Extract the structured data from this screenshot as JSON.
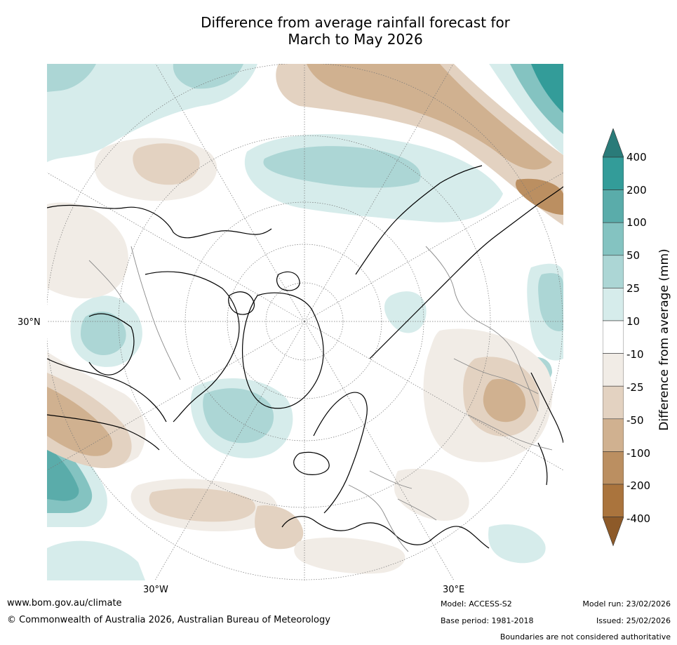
{
  "title": {
    "line1": "Difference from average rainfall forecast for",
    "line2": "March to May 2026"
  },
  "axis_labels": {
    "lat_30n": "30°N",
    "lon_30w": "30°W",
    "lon_30e": "30°E"
  },
  "colorbar": {
    "title": "Difference from average (mm)",
    "ticks": [
      "400",
      "200",
      "100",
      "50",
      "25",
      "10",
      "-10",
      "-25",
      "-50",
      "-100",
      "-200",
      "-400"
    ],
    "colors": [
      "#2a7b79",
      "#339c99",
      "#5aacaa",
      "#84c3c1",
      "#acd6d5",
      "#d6eceb",
      "#ffffff",
      "#f1ece6",
      "#e3d2c1",
      "#d0b190",
      "#bb8f61",
      "#aa743d",
      "#8d5a29"
    ]
  },
  "footer": {
    "website": "www.bom.gov.au/climate",
    "copyright": "© Commonwealth of Australia 2026, Australian Bureau of Meteorology",
    "model": "Model: ACCESS-S2",
    "base_period": "Base period: 1981-2018",
    "model_run": "Model run: 23/02/2026",
    "issued": "Issued: 25/02/2026",
    "disclaimer": "Boundaries are not considered authoritative"
  }
}
